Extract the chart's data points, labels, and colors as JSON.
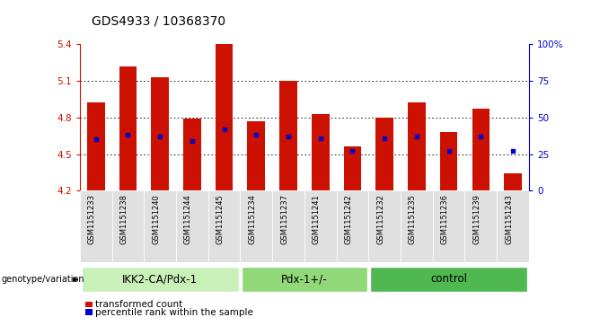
{
  "title": "GDS4933 / 10368370",
  "samples": [
    "GSM1151233",
    "GSM1151238",
    "GSM1151240",
    "GSM1151244",
    "GSM1151245",
    "GSM1151234",
    "GSM1151237",
    "GSM1151241",
    "GSM1151242",
    "GSM1151232",
    "GSM1151235",
    "GSM1151236",
    "GSM1151239",
    "GSM1151243"
  ],
  "bar_values": [
    4.92,
    5.22,
    5.13,
    4.79,
    5.4,
    4.77,
    5.1,
    4.83,
    4.56,
    4.8,
    4.92,
    4.68,
    4.87,
    4.34
  ],
  "percentile_values": [
    35,
    38,
    37,
    34,
    42,
    38,
    37,
    36,
    27,
    36,
    37,
    27,
    37,
    27
  ],
  "ymin": 4.2,
  "ymax": 5.4,
  "yticks": [
    4.2,
    4.5,
    4.8,
    5.1,
    5.4
  ],
  "right_yticks": [
    0,
    25,
    50,
    75,
    100
  ],
  "groups": [
    {
      "label": "IKK2-CA/Pdx-1",
      "start": 0,
      "end": 4,
      "color": "#c8f0b8"
    },
    {
      "label": "Pdx-1+/-",
      "start": 5,
      "end": 8,
      "color": "#90d878"
    },
    {
      "label": "control",
      "start": 9,
      "end": 13,
      "color": "#50b850"
    }
  ],
  "bar_color": "#cc1100",
  "percentile_color": "#0000cc",
  "xlabel_label": "genotype/variation",
  "bar_width": 0.55,
  "title_fontsize": 10,
  "tick_fontsize": 7.5,
  "group_label_fontsize": 8.5,
  "legend_fontsize": 7.5
}
